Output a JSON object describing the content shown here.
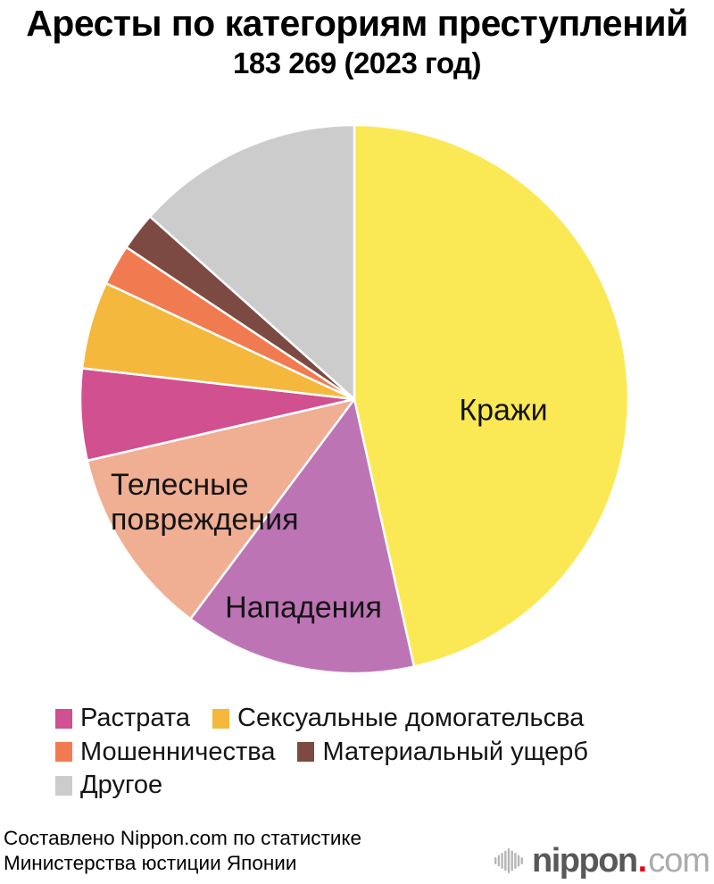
{
  "page": {
    "title": "Аресты по категориям преступлений",
    "subtitle": "183 269 (2023 год)"
  },
  "chart_data": {
    "type": "pie",
    "title": "Аресты по категориям преступлений",
    "subtitle": "183 269 (2023 год)",
    "total": "183 269",
    "year": "2023",
    "start_angle_deg": 0,
    "direction": "clockwise",
    "slices": [
      {
        "label": "Кражи",
        "percent": 46.5,
        "color": "#FAE955",
        "label_in_pie": true
      },
      {
        "label": "Нападения",
        "percent": 13.7,
        "color": "#BD74B5",
        "label_in_pie": true
      },
      {
        "label": "Телесные повреждения",
        "percent": 11.2,
        "color": "#F0AE93",
        "label_in_pie": true
      },
      {
        "label": "Растрата",
        "percent": 5.4,
        "color": "#D1508F",
        "label_in_pie": false
      },
      {
        "label": "Сексуальные домогательсва",
        "percent": 5.15,
        "color": "#F4B83D",
        "label_in_pie": false
      },
      {
        "label": "Мошенничества",
        "percent": 2.4,
        "color": "#F17B50",
        "label_in_pie": false
      },
      {
        "label": "Материальный ущерб",
        "percent": 2.25,
        "color": "#7C4A42",
        "label_in_pie": false
      },
      {
        "label": "Другое",
        "percent": 13.4,
        "color": "#CCCCCC",
        "label_in_pie": false
      }
    ],
    "legend_rows": [
      [
        3,
        4
      ],
      [
        5,
        6
      ],
      [
        7
      ]
    ],
    "legend_position": "bottom-left",
    "slice_border_color": "#FFFFFF"
  },
  "footer": {
    "credit_line1": "Составлено Nippon.com по статистике",
    "credit_line2": "Министерства юстиции Японии",
    "logo": {
      "name": "nippon",
      "dot": ".",
      "tld": "com"
    }
  }
}
